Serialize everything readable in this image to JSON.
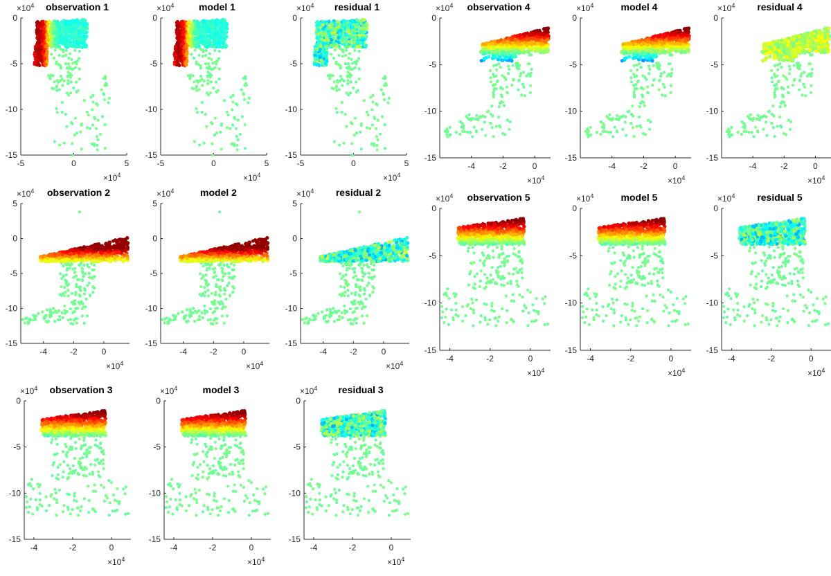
{
  "exponent_label": "×10",
  "exponent_power": "4",
  "colormap": [
    "#00007f",
    "#0000ff",
    "#007fff",
    "#00ffff",
    "#7fff7f",
    "#ffff00",
    "#ff7f00",
    "#ff0000",
    "#7f0000"
  ],
  "chart_data": [
    {
      "type": "scatter",
      "title": "observation 1",
      "xlim": [
        -5,
        5
      ],
      "ylim": [
        -15,
        0
      ],
      "xticks": [
        -5,
        0,
        5
      ],
      "yticks": [
        0,
        -5,
        -10,
        -15
      ],
      "x_scale": "×10^4",
      "y_scale": "×10^4",
      "shape": "A",
      "style": "obs_west"
    },
    {
      "type": "scatter",
      "title": "model 1",
      "xlim": [
        -5,
        5
      ],
      "ylim": [
        -15,
        0
      ],
      "xticks": [
        -5,
        0,
        5
      ],
      "yticks": [
        0,
        -5,
        -10,
        -15
      ],
      "x_scale": "×10^4",
      "y_scale": "×10^4",
      "shape": "A",
      "style": "obs_west"
    },
    {
      "type": "scatter",
      "title": "residual 1",
      "xlim": [
        -5,
        5
      ],
      "ylim": [
        -15,
        0
      ],
      "xticks": [
        -5,
        0,
        5
      ],
      "yticks": [
        0,
        -5,
        -10,
        -15
      ],
      "x_scale": "×10^4",
      "y_scale": "×10^4",
      "shape": "A",
      "style": "residual"
    },
    {
      "type": "scatter",
      "title": "observation 2",
      "xlim": [
        -5.5,
        1.7
      ],
      "ylim": [
        -15,
        5
      ],
      "xticks": [
        -4,
        -2,
        0
      ],
      "yticks": [
        5,
        0,
        -5,
        -10,
        -15
      ],
      "x_scale": "×10^4",
      "y_scale": "×10^4",
      "shape": "B",
      "style": "obs_north"
    },
    {
      "type": "scatter",
      "title": "model 2",
      "xlim": [
        -5.5,
        1.7
      ],
      "ylim": [
        -15,
        5
      ],
      "xticks": [
        -4,
        -2,
        0
      ],
      "yticks": [
        5,
        0,
        -5,
        -10,
        -15
      ],
      "x_scale": "×10^4",
      "y_scale": "×10^4",
      "shape": "B",
      "style": "obs_north"
    },
    {
      "type": "scatter",
      "title": "residual 2",
      "xlim": [
        -5.5,
        1.7
      ],
      "ylim": [
        -15,
        5
      ],
      "xticks": [
        -4,
        -2,
        0
      ],
      "yticks": [
        5,
        0,
        -5,
        -10,
        -15
      ],
      "x_scale": "×10^4",
      "y_scale": "×10^4",
      "shape": "B",
      "style": "residual"
    },
    {
      "type": "scatter",
      "title": "observation 3",
      "xlim": [
        -4.5,
        1
      ],
      "ylim": [
        -15,
        0
      ],
      "xticks": [
        -4,
        -2,
        0
      ],
      "yticks": [
        0,
        -5,
        -10,
        -15
      ],
      "x_scale": "×10^4",
      "y_scale": "×10^4",
      "shape": "C",
      "style": "obs_north"
    },
    {
      "type": "scatter",
      "title": "model 3",
      "xlim": [
        -4.5,
        1
      ],
      "ylim": [
        -15,
        0
      ],
      "xticks": [
        -4,
        -2,
        0
      ],
      "yticks": [
        0,
        -5,
        -10,
        -15
      ],
      "x_scale": "×10^4",
      "y_scale": "×10^4",
      "shape": "C",
      "style": "obs_north"
    },
    {
      "type": "scatter",
      "title": "residual 3",
      "xlim": [
        -4.5,
        1
      ],
      "ylim": [
        -15,
        0
      ],
      "xticks": [
        -4,
        -2,
        0
      ],
      "yticks": [
        0,
        -5,
        -10,
        -15
      ],
      "x_scale": "×10^4",
      "y_scale": "×10^4",
      "shape": "C",
      "style": "residual"
    },
    {
      "type": "scatter",
      "title": "observation 4",
      "xlim": [
        -6,
        1
      ],
      "ylim": [
        -15,
        0
      ],
      "xticks": [
        -4,
        -2,
        0
      ],
      "yticks": [
        0,
        -5,
        -10,
        -15
      ],
      "x_scale": "×10^4",
      "y_scale": "×10^4",
      "shape": "D",
      "style": "obs_north"
    },
    {
      "type": "scatter",
      "title": "model 4",
      "xlim": [
        -6,
        1
      ],
      "ylim": [
        -15,
        0
      ],
      "xticks": [
        -4,
        -2,
        0
      ],
      "yticks": [
        0,
        -5,
        -10,
        -15
      ],
      "x_scale": "×10^4",
      "y_scale": "×10^4",
      "shape": "D",
      "style": "obs_north"
    },
    {
      "type": "scatter",
      "title": "residual 4",
      "xlim": [
        -6,
        1
      ],
      "ylim": [
        -15,
        0
      ],
      "xticks": [
        -4,
        -2,
        0
      ],
      "yticks": [
        0,
        -5,
        -10,
        -15
      ],
      "x_scale": "×10^4",
      "y_scale": "×10^4",
      "shape": "D",
      "style": "residual_yellow"
    },
    {
      "type": "scatter",
      "title": "observation 5",
      "xlim": [
        -4.5,
        1
      ],
      "ylim": [
        -15,
        0
      ],
      "xticks": [
        -4,
        -2,
        0
      ],
      "yticks": [
        0,
        -5,
        -10,
        -15
      ],
      "x_scale": "×10^4",
      "y_scale": "×10^4",
      "shape": "C",
      "style": "obs_north"
    },
    {
      "type": "scatter",
      "title": "model 5",
      "xlim": [
        -4.5,
        1
      ],
      "ylim": [
        -15,
        0
      ],
      "xticks": [
        -4,
        -2,
        0
      ],
      "yticks": [
        0,
        -5,
        -10,
        -15
      ],
      "x_scale": "×10^4",
      "y_scale": "×10^4",
      "shape": "C",
      "style": "obs_north"
    },
    {
      "type": "scatter",
      "title": "residual 5",
      "xlim": [
        -4.5,
        1
      ],
      "ylim": [
        -15,
        0
      ],
      "xticks": [
        -4,
        -2,
        0
      ],
      "yticks": [
        0,
        -5,
        -10,
        -15
      ],
      "x_scale": "×10^4",
      "y_scale": "×10^4",
      "shape": "C",
      "style": "residual"
    }
  ]
}
